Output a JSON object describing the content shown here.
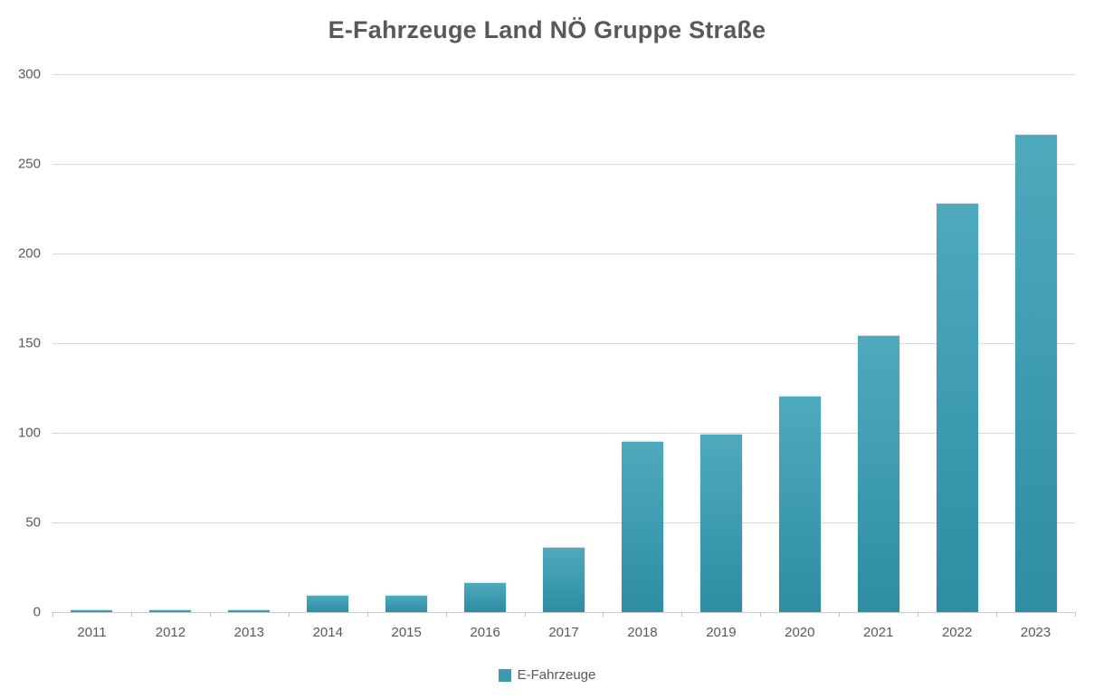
{
  "chart_data": {
    "type": "bar",
    "title": "E-Fahrzeuge Land NÖ Gruppe Straße",
    "categories": [
      "2011",
      "2012",
      "2013",
      "2014",
      "2015",
      "2016",
      "2017",
      "2018",
      "2019",
      "2020",
      "2021",
      "2022",
      "2023"
    ],
    "values": [
      1,
      1,
      1,
      9,
      9,
      16,
      36,
      95,
      99,
      120,
      154,
      228,
      266
    ],
    "series_name": "E-Fahrzeuge",
    "xlabel": "",
    "ylabel": "",
    "ylim": [
      0,
      300
    ],
    "ytick_step": 50,
    "ytick_labels": [
      "0",
      "50",
      "100",
      "150",
      "200",
      "250",
      "300"
    ],
    "grid": "horizontal",
    "legend_position": "bottom-center",
    "colors": {
      "bar_top": "#4fa9bd",
      "bar_mid": "#3c9ab0",
      "bar_bottom": "#2f8da3",
      "legend_swatch": "#3d9ab0",
      "gridline": "#d9d9d9",
      "axis_text": "#595959",
      "title_text": "#595959"
    }
  }
}
